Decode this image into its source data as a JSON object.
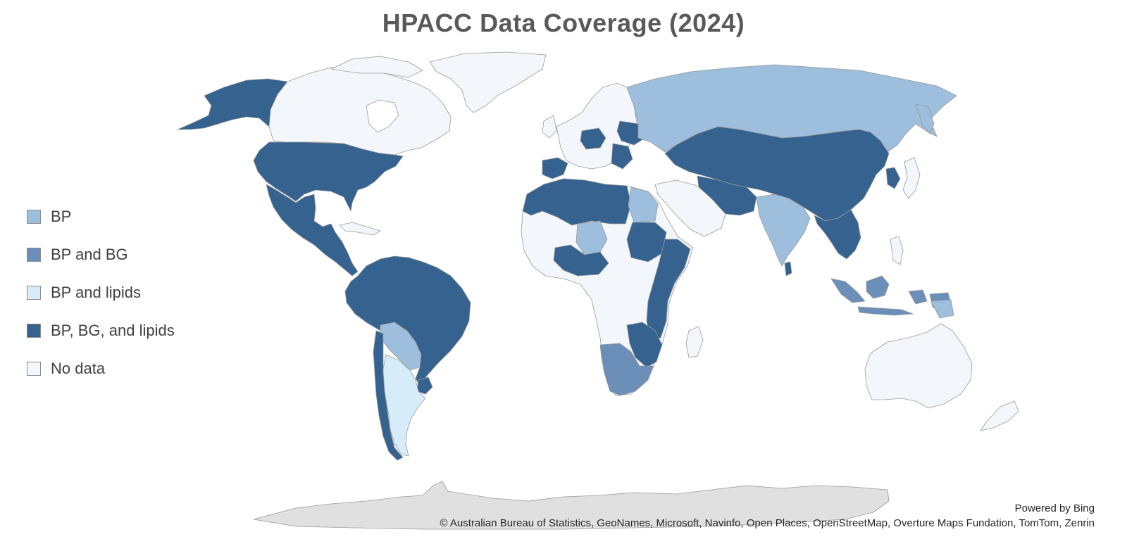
{
  "title": "HPACC Data Coverage (2024)",
  "legend": {
    "items": [
      {
        "label": "BP",
        "color": "#9dbedc"
      },
      {
        "label": "BP and BG",
        "color": "#6b8fb8"
      },
      {
        "label": "BP and lipids",
        "color": "#d6ecf8"
      },
      {
        "label": "BP, BG, and lipids",
        "color": "#35628f"
      },
      {
        "label": "No data",
        "color": "#f3f6fa"
      }
    ]
  },
  "map": {
    "antarctica_color": "#e0e0e0",
    "regions": [
      {
        "region": "Canada & Greenland",
        "category": "No data"
      },
      {
        "region": "Alaska",
        "category": "BP, BG, and lipids"
      },
      {
        "region": "United States",
        "category": "BP, BG, and lipids"
      },
      {
        "region": "Mexico & Central America",
        "category": "BP, BG, and lipids"
      },
      {
        "region": "Brazil & northern South America",
        "category": "BP, BG, and lipids"
      },
      {
        "region": "Bolivia / Paraguay",
        "category": "BP"
      },
      {
        "region": "Argentina",
        "category": "BP and lipids"
      },
      {
        "region": "Chile",
        "category": "BP, BG, and lipids"
      },
      {
        "region": "Russia",
        "category": "BP"
      },
      {
        "region": "China & Mongolia",
        "category": "BP, BG, and lipids"
      },
      {
        "region": "India",
        "category": "BP"
      },
      {
        "region": "Egypt",
        "category": "BP"
      },
      {
        "region": "Namibia / South Africa",
        "category": "BP and BG"
      },
      {
        "region": "Indonesia",
        "category": "BP and BG"
      },
      {
        "region": "Australia",
        "category": "No data"
      }
    ]
  },
  "attribution": {
    "powered_by": "Powered by Bing",
    "sources": "© Australian Bureau of Statistics, GeoNames, Microsoft, Navinfo, Open Places, OpenStreetMap, Overture Maps Fundation, TomTom, Zenrin"
  }
}
